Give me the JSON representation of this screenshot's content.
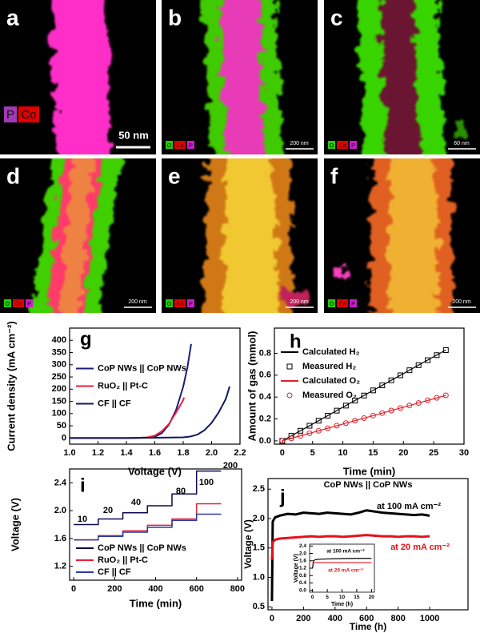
{
  "panels": [
    {
      "letter": "a",
      "elements": [
        "P",
        "Co"
      ],
      "scale_bar": "50 nm"
    },
    {
      "letter": "b",
      "elements": [
        "O",
        "Co",
        "P"
      ],
      "scale_bar": "200 nm"
    },
    {
      "letter": "c",
      "elements": [
        "O",
        "Co",
        "P"
      ],
      "scale_bar": "60 nm"
    },
    {
      "letter": "d",
      "elements": [
        "O",
        "Co",
        "P"
      ],
      "scale_bar": "200 nm"
    },
    {
      "letter": "e",
      "elements": [
        "O",
        "Co",
        "P"
      ],
      "scale_bar": "200 nm"
    },
    {
      "letter": "f",
      "elements": [
        "O",
        "Co",
        "P"
      ],
      "scale_bar": "200 nm"
    }
  ],
  "chart_data": [
    {
      "type": "line",
      "label": "g",
      "x_label": "Voltage (V)",
      "y_label": "Current density (mA cm⁻²)",
      "xlim": [
        1.0,
        2.2
      ],
      "ylim": [
        -25,
        450
      ],
      "xticks": [
        {
          "value": 1,
          "label": "1.0"
        },
        1.2,
        1.4,
        1.6,
        1.8,
        {
          "value": 2,
          "label": "2.0"
        },
        2.2
      ],
      "yticks": [
        0,
        50,
        100,
        150,
        200,
        250,
        300,
        350,
        400
      ],
      "legend": "center left",
      "series": [
        {
          "name": "CoP NWs || CoP NWs",
          "color": "#1c1c7a",
          "style": "line",
          "x": [
            1.0,
            1.2,
            1.4,
            1.5,
            1.55,
            1.6,
            1.65,
            1.7,
            1.75,
            1.8,
            1.83,
            1.856
          ],
          "values": [
            0,
            0,
            0,
            1,
            2,
            5,
            20,
            55,
            115,
            210,
            290,
            385
          ]
        },
        {
          "name": "RuO₂ || Pt-C",
          "color": "#e8203a",
          "style": "line",
          "x": [
            1.0,
            1.4,
            1.5,
            1.55,
            1.6,
            1.65,
            1.7,
            1.75,
            1.8,
            1.806
          ],
          "values": [
            0,
            0,
            1,
            3,
            10,
            28,
            58,
            105,
            155,
            166
          ]
        },
        {
          "name": "CF || CF",
          "color": "#0d1a5e",
          "style": "line",
          "x": [
            1.0,
            1.4,
            1.6,
            1.8,
            1.85,
            1.9,
            1.95,
            2.0,
            2.05,
            2.1,
            2.127
          ],
          "values": [
            0,
            0,
            1,
            3,
            6,
            14,
            32,
            62,
            105,
            160,
            211
          ]
        }
      ]
    },
    {
      "type": "line",
      "label": "h",
      "x_label": "Time (min)",
      "y_label": "Amount of gas (mmol)",
      "xlim": [
        -1.3,
        30
      ],
      "ylim": [
        -0.03,
        1.03
      ],
      "xticks": [
        0,
        5,
        10,
        15,
        20,
        25,
        30
      ],
      "yticks": [
        {
          "value": 0,
          "label": "0.0"
        },
        0.2,
        0.4,
        0.6,
        0.8
      ],
      "legend": "upper left",
      "x": [
        0,
        1.5,
        3,
        4.5,
        6,
        7.5,
        9,
        10.5,
        12,
        13.5,
        15,
        16.5,
        18,
        19.5,
        21,
        22.5,
        24,
        25.5,
        27
      ],
      "series": [
        {
          "name": "Calculated H₂",
          "color": "#000000",
          "style": "line",
          "x": [
            0,
            27
          ],
          "values": [
            0,
            0.83
          ]
        },
        {
          "name": "Measured H₂",
          "color": "#000000",
          "style": "markers",
          "marker": "square",
          "values": [
            0,
            0.046,
            0.092,
            0.138,
            0.184,
            0.23,
            0.276,
            0.322,
            0.368,
            0.414,
            0.461,
            0.507,
            0.553,
            0.599,
            0.645,
            0.691,
            0.737,
            0.783,
            0.829
          ]
        },
        {
          "name": "Calculated O₂",
          "color": "#e0202a",
          "style": "line",
          "x": [
            0,
            27
          ],
          "values": [
            0,
            0.415
          ]
        },
        {
          "name": "Measured O₂",
          "color": "#e0202a",
          "style": "markers",
          "marker": "circle",
          "values": [
            0,
            0.023,
            0.046,
            0.069,
            0.092,
            0.115,
            0.139,
            0.162,
            0.185,
            0.208,
            0.231,
            0.254,
            0.277,
            0.3,
            0.323,
            0.346,
            0.37,
            0.393,
            0.416
          ]
        }
      ]
    },
    {
      "type": "line",
      "label": "i",
      "x_label": "Time (min)",
      "y_label": "Voltage (V)",
      "xlim": [
        -20,
        820
      ],
      "ylim": [
        1.0,
        2.6
      ],
      "xticks": [
        0,
        200,
        400,
        600,
        800
      ],
      "yticks": [
        1.2,
        1.6,
        {
          "value": 2,
          "label": "2.0"
        },
        2.4
      ],
      "legend": "lower left",
      "x": [
        0,
        120,
        120,
        240,
        240,
        360,
        360,
        480,
        480,
        600,
        600,
        720
      ],
      "annotations": [
        {
          "text": "10"
        },
        {
          "text": "20"
        },
        {
          "text": "40"
        },
        {
          "text": "80"
        },
        {
          "text": "100"
        },
        {
          "text": "200"
        }
      ],
      "series": [
        {
          "name": "CoP NWs || CoP NWs",
          "color": "#0a0a50",
          "style": "line",
          "values": [
            1.8,
            1.8,
            1.88,
            1.88,
            1.97,
            1.97,
            2.07,
            2.07,
            2.24,
            2.24,
            2.57,
            2.57
          ]
        },
        {
          "name": "RuO₂ || Pt-C",
          "color": "#e8203a",
          "style": "line",
          "values": [
            1.58,
            1.58,
            1.64,
            1.64,
            1.71,
            1.71,
            1.79,
            1.79,
            1.88,
            1.88,
            2.1,
            2.1
          ]
        },
        {
          "name": "CF || CF",
          "color": "#2a3aa8",
          "style": "line",
          "values": [
            1.58,
            1.58,
            1.63,
            1.63,
            1.69,
            1.69,
            1.76,
            1.76,
            1.86,
            1.86,
            1.95,
            1.95
          ]
        }
      ]
    },
    {
      "type": "line",
      "label": "j",
      "x_label": "Time (h)",
      "y_label": "Voltage (V)",
      "xlim": [
        -25,
        1243
      ],
      "ylim": [
        0.45,
        2.68
      ],
      "xticks": [
        0,
        200,
        400,
        600,
        800,
        1000
      ],
      "yticks": [
        0.5,
        {
          "value": 1,
          "label": "1.0"
        },
        1.5,
        {
          "value": 2,
          "label": "2.0"
        },
        2.5
      ],
      "x": [
        0,
        5,
        20,
        50,
        100,
        150,
        200,
        250,
        300,
        350,
        400,
        450,
        500,
        550,
        600,
        650,
        700,
        750,
        800,
        850,
        900,
        950,
        1000
      ],
      "annotations": [
        {
          "text": "CoP NWs || CoP NWs",
          "color": "#000000"
        },
        {
          "text": "at 100 mA cm⁻²",
          "color": "#000000"
        },
        {
          "text": "at 20 mA cm⁻²",
          "color": "#e8101a"
        }
      ],
      "series": [
        {
          "color": "#000000",
          "style": "line",
          "values": [
            0.6,
            1.95,
            2.02,
            2.05,
            2.08,
            2.07,
            2.1,
            2.09,
            2.08,
            2.1,
            2.09,
            2.08,
            2.07,
            2.1,
            2.14,
            2.12,
            2.1,
            2.09,
            2.08,
            2.07,
            2.06,
            2.07,
            2.05
          ]
        },
        {
          "color": "#e8101a",
          "style": "line",
          "values": [
            1.3,
            1.6,
            1.64,
            1.66,
            1.67,
            1.68,
            1.69,
            1.7,
            1.69,
            1.7,
            1.7,
            1.69,
            1.7,
            1.71,
            1.72,
            1.71,
            1.7,
            1.7,
            1.69,
            1.7,
            1.7,
            1.69,
            1.7
          ]
        }
      ]
    },
    {
      "type": "line",
      "x_label": "Time (h)",
      "y_label": "Voltage (V)",
      "xlim": [
        -1,
        21
      ],
      "ylim": [
        -0.1,
        2.5
      ],
      "xticks": [
        0,
        5,
        10,
        15,
        20
      ],
      "yticks": [
        {
          "value": 0,
          "label": "0.0"
        },
        0.4,
        0.8,
        1.2,
        1.6,
        {
          "value": 2,
          "label": "2.0"
        },
        2.4
      ],
      "x": [
        0,
        0.3,
        1,
        2,
        5,
        10,
        15,
        20
      ],
      "annotations": [
        {
          "text": "at 100 mA cm⁻²",
          "color": "#000000"
        },
        {
          "text": "at 20 mA cm⁻²",
          "color": "#e8101a"
        }
      ],
      "series": [
        {
          "color": "#000000",
          "style": "line",
          "values": [
            1.2,
            1.6,
            1.66,
            1.68,
            1.7,
            1.72,
            1.73,
            1.73
          ]
        },
        {
          "color": "#e8101a",
          "style": "line",
          "values": [
            1.45,
            1.5,
            1.5,
            1.5,
            1.5,
            1.5,
            1.5,
            1.5
          ]
        }
      ]
    }
  ]
}
